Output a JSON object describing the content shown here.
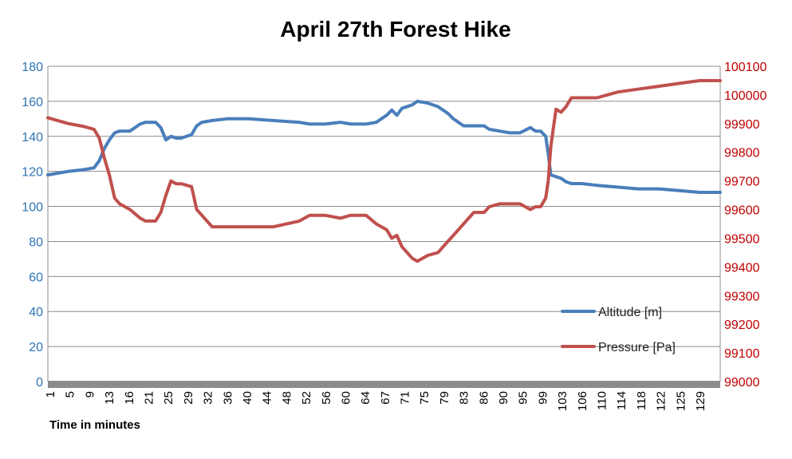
{
  "chart_data": {
    "type": "line",
    "title": "April 27th Forest Hike",
    "xlabel": "Time in minutes",
    "ylabel_left": "",
    "ylabel_right": "",
    "x_range": [
      1,
      132
    ],
    "x_tick_labels": [
      "1",
      "5",
      "9",
      "13",
      "16",
      "21",
      "25",
      "29",
      "32",
      "36",
      "40",
      "44",
      "48",
      "52",
      "56",
      "60",
      "64",
      "67",
      "71",
      "75",
      "79",
      "83",
      "86",
      "90",
      "95",
      "99",
      "103",
      "106",
      "110",
      "114",
      "118",
      "122",
      "125",
      "129"
    ],
    "y_left": {
      "range": [
        0,
        180
      ],
      "ticks": [
        0,
        20,
        40,
        60,
        80,
        100,
        120,
        140,
        160,
        180
      ]
    },
    "y_right": {
      "range": [
        99000,
        100100
      ],
      "ticks": [
        99000,
        99100,
        99200,
        99300,
        99400,
        99500,
        99600,
        99700,
        99800,
        99900,
        100000,
        100100
      ]
    },
    "grid": true,
    "legend_position": "bottom-right",
    "series": [
      {
        "name": "Altitude [m]",
        "axis": "left",
        "color": "#4a7ebb",
        "x": [
          1,
          3,
          5,
          8,
          10,
          11,
          12,
          13,
          14,
          15,
          17,
          19,
          20,
          22,
          23,
          24,
          25,
          26,
          27,
          29,
          30,
          31,
          33,
          36,
          40,
          45,
          50,
          52,
          55,
          58,
          60,
          63,
          65,
          67,
          68,
          69,
          70,
          72,
          73,
          75,
          77,
          79,
          80,
          82,
          84,
          86,
          87,
          89,
          91,
          93,
          95,
          96,
          97,
          98,
          98.5,
          99,
          100,
          101,
          102,
          103,
          105,
          108,
          112,
          116,
          120,
          124,
          128,
          132
        ],
        "y": [
          118,
          119,
          120,
          121,
          122,
          126,
          133,
          138,
          142,
          143,
          143,
          147,
          148,
          148,
          145,
          138,
          140,
          139,
          139,
          141,
          146,
          148,
          149,
          150,
          150,
          149,
          148,
          147,
          147,
          148,
          147,
          147,
          148,
          152,
          155,
          152,
          156,
          158,
          160,
          159,
          157,
          153,
          150,
          146,
          146,
          146,
          144,
          143,
          142,
          142,
          145,
          143,
          143,
          140,
          130,
          118,
          117,
          116,
          114,
          113,
          113,
          112,
          111,
          110,
          110,
          109,
          108,
          108
        ]
      },
      {
        "name": "Pressure [Pa]",
        "axis": "right",
        "color": "#c0504d",
        "x": [
          1,
          3,
          5,
          8,
          10,
          11,
          12,
          13,
          14,
          15,
          17,
          19,
          20,
          22,
          23,
          24,
          25,
          26,
          27,
          29,
          30,
          31,
          33,
          36,
          40,
          45,
          50,
          52,
          55,
          58,
          60,
          63,
          65,
          67,
          68,
          69,
          70,
          72,
          73,
          75,
          77,
          79,
          80,
          82,
          84,
          86,
          87,
          89,
          91,
          93,
          95,
          96,
          97,
          98,
          98.5,
          99,
          100,
          101,
          102,
          103,
          105,
          108,
          112,
          116,
          120,
          124,
          128,
          132
        ],
        "y": [
          99920,
          99910,
          99900,
          99890,
          99880,
          99850,
          99780,
          99720,
          99640,
          99620,
          99600,
          99570,
          99560,
          99560,
          99590,
          99650,
          99700,
          99690,
          99690,
          99680,
          99600,
          99580,
          99540,
          99540,
          99540,
          99540,
          99560,
          99580,
          99580,
          99570,
          99580,
          99580,
          99550,
          99530,
          99500,
          99510,
          99470,
          99430,
          99420,
          99440,
          99450,
          99490,
          99510,
          99550,
          99590,
          99590,
          99610,
          99620,
          99620,
          99620,
          99600,
          99610,
          99610,
          99640,
          99700,
          99820,
          99950,
          99940,
          99960,
          99990,
          99990,
          99990,
          100010,
          100020,
          100030,
          100040,
          100050,
          100050
        ]
      }
    ]
  }
}
